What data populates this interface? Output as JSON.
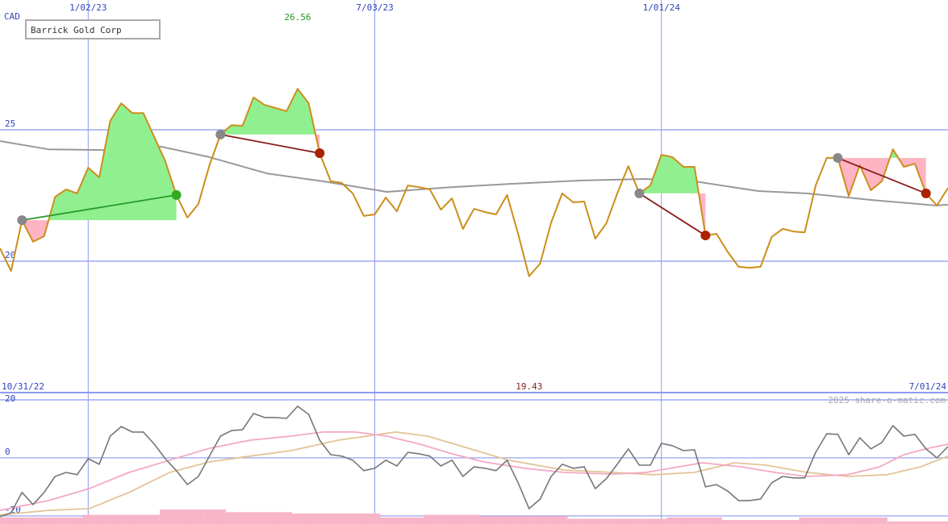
{
  "currency": "CAD",
  "chart_data": [
    {
      "type": "line",
      "title": "Barrick Gold Corp",
      "xlim": [
        0,
        86
      ],
      "ylim": [
        15,
        29.94
      ],
      "yticks": [
        20,
        25
      ],
      "grid": true,
      "grid_color": "#8c9bee",
      "xticks": [
        {
          "value": 8,
          "label": "1/02/23"
        },
        {
          "value": 34,
          "label": "7/03/23"
        },
        {
          "value": 60,
          "label": "1/01/24"
        }
      ],
      "range_labels": [
        "10/31/22",
        "7/01/24"
      ],
      "max_color": "#229922",
      "min_color": "#882222",
      "series": [
        {
          "color": "#cc8e1a",
          "values": [
            20.49,
            19.63,
            21.56,
            20.74,
            20.95,
            22.45,
            22.73,
            22.58,
            23.56,
            23.19,
            25.34,
            26.01,
            25.64,
            25.64,
            24.72,
            23.8,
            22.52,
            21.66,
            22.18,
            23.65,
            24.82,
            25.18,
            25.15,
            26.23,
            25.95,
            25.83,
            25.71,
            26.56,
            26.01,
            24.11,
            23.04,
            22.98,
            22.58,
            21.72,
            21.78,
            22.42,
            21.9,
            22.88,
            22.82,
            22.73,
            21.96,
            22.39,
            21.23,
            21.99,
            21.87,
            21.78,
            22.52,
            21.04,
            19.43,
            19.91,
            21.47,
            22.58,
            22.24,
            22.27,
            20.86,
            21.44,
            22.58,
            23.62,
            22.58,
            22.88,
            24.05,
            23.96,
            23.59,
            23.59,
            20.98,
            21.04,
            20.37,
            19.79,
            19.75,
            19.79,
            20.92,
            21.23,
            21.13,
            21.1,
            22.88,
            23.93,
            23.93,
            22.48,
            23.65,
            22.7,
            23.04,
            24.26,
            23.59,
            23.71,
            22.58,
            22.12,
            22.79
          ]
        },
        {
          "color": "#999999",
          "x": [
            0,
            4.4,
            9.5,
            14.6,
            19,
            24.2,
            29.3,
            35.1,
            41,
            46.1,
            52.7,
            58.6,
            63,
            68.8,
            73.2,
            79.1,
            84.9,
            86
          ],
          "values": [
            24.57,
            24.26,
            24.23,
            24.36,
            23.96,
            23.34,
            23.04,
            22.64,
            22.82,
            22.94,
            23.07,
            23.13,
            23.04,
            22.67,
            22.58,
            22.33,
            22.12,
            22.15
          ]
        }
      ],
      "trades": [
        {
          "start": 2,
          "end": 16,
          "color": "#2a9a2a",
          "end_color": "#33aa22"
        },
        {
          "start": 20,
          "end": 29,
          "color": "#8b1a1a",
          "end_color": "#aa2200"
        },
        {
          "start": 58,
          "end": 64,
          "color": "#8b1a1a",
          "end_color": "#aa2200"
        },
        {
          "start": 76,
          "end": 84,
          "color": "#8b1a1a",
          "end_color": "#aa2200"
        }
      ],
      "start_color": "#888888",
      "gain_fill": "#90f090",
      "loss_fill": "#ffb4c4"
    },
    {
      "type": "line",
      "watermark": "2025 share-o-matic.com",
      "xlim": [
        0,
        86
      ],
      "ylim": [
        -22.8,
        22.5
      ],
      "yticks": [
        -20,
        0,
        20
      ],
      "grid": true,
      "series": [
        {
          "color": "#777777",
          "values": [
            -20.3,
            -18.9,
            -11.9,
            -16.1,
            -11.9,
            -6.4,
            -5.0,
            -5.8,
            -0.3,
            -2.2,
            7.5,
            10.8,
            8.9,
            8.9,
            4.7,
            -0.3,
            -4.4,
            -9.2,
            -6.4,
            0.6,
            7.5,
            9.4,
            9.7,
            15.3,
            13.9,
            13.9,
            13.6,
            17.8,
            15.0,
            6.1,
            1.1,
            0.6,
            -0.8,
            -4.4,
            -3.6,
            -0.8,
            -2.8,
            1.9,
            1.4,
            0.6,
            -2.8,
            -0.8,
            -6.4,
            -3.1,
            -3.6,
            -4.4,
            -0.8,
            -8.6,
            -17.5,
            -14.2,
            -6.4,
            -2.2,
            -3.6,
            -3.1,
            -10.6,
            -7.2,
            -2.2,
            3.1,
            -2.5,
            -2.5,
            5.0,
            4.2,
            2.5,
            2.8,
            -10.0,
            -9.2,
            -11.4,
            -14.7,
            -14.7,
            -14.2,
            -8.6,
            -6.4,
            -6.9,
            -6.9,
            1.9,
            8.3,
            8.1,
            1.1,
            6.9,
            3.1,
            5.3,
            11.1,
            7.5,
            8.1,
            3.1,
            0,
            3.9
          ]
        },
        {
          "color": "#f4a8c4",
          "x": [
            0,
            4.4,
            8.1,
            11.7,
            15.4,
            19,
            22.7,
            26.4,
            29.3,
            32.2,
            35.1,
            38.1,
            41,
            43.9,
            47.6,
            51.2,
            55.6,
            58.6,
            60.8,
            63.7,
            67.3,
            70.3,
            73.2,
            76.9,
            79.8,
            82,
            84.2,
            86
          ],
          "values": [
            -18.1,
            -14.7,
            -10.6,
            -5.0,
            -0.8,
            3.3,
            6.1,
            7.5,
            8.9,
            8.9,
            7.5,
            4.7,
            1.4,
            -1.4,
            -3.6,
            -5.0,
            -5.6,
            -5.0,
            -3.6,
            -1.7,
            -3.1,
            -5.0,
            -6.4,
            -5.8,
            -3.1,
            1.1,
            3.3,
            4.7
          ]
        },
        {
          "color": "#e2c496",
          "x": [
            0,
            4.4,
            8.1,
            11.7,
            15.4,
            19,
            22.7,
            26.4,
            30.7,
            35.9,
            38.8,
            42.5,
            46.1,
            51.2,
            55.6,
            59.3,
            63,
            66.6,
            69.5,
            73.2,
            76.9,
            80.5,
            83.5,
            86
          ],
          "values": [
            -19.7,
            -18.1,
            -17.5,
            -11.9,
            -5.0,
            -1.4,
            0.6,
            2.5,
            6.1,
            8.9,
            7.5,
            3.3,
            -0.8,
            -4.2,
            -5.0,
            -5.8,
            -5.0,
            -1.7,
            -2.5,
            -5.0,
            -6.4,
            -5.8,
            -3.1,
            0.6
          ]
        }
      ],
      "volume": {
        "color": "#f8b4c8",
        "vlim": [
          0,
          100
        ],
        "values": [
          5,
          5,
          5,
          5,
          5,
          5,
          5,
          5,
          7,
          7,
          7,
          7,
          7,
          7,
          7,
          11,
          11,
          11,
          11,
          11,
          11,
          9,
          9,
          9,
          9,
          9,
          9,
          8,
          8,
          8,
          8,
          8,
          8,
          8,
          8,
          5,
          5,
          5,
          5,
          7,
          7,
          7,
          7,
          7,
          6,
          6,
          6,
          6,
          6,
          6,
          6,
          6,
          4,
          4,
          4,
          4,
          4,
          4,
          4,
          4,
          4,
          5,
          5,
          5,
          5,
          5,
          3,
          3,
          3,
          3,
          3,
          3,
          3,
          5,
          5,
          5,
          5,
          5,
          5,
          5,
          5,
          2,
          2,
          2,
          2,
          2,
          2
        ]
      }
    }
  ]
}
